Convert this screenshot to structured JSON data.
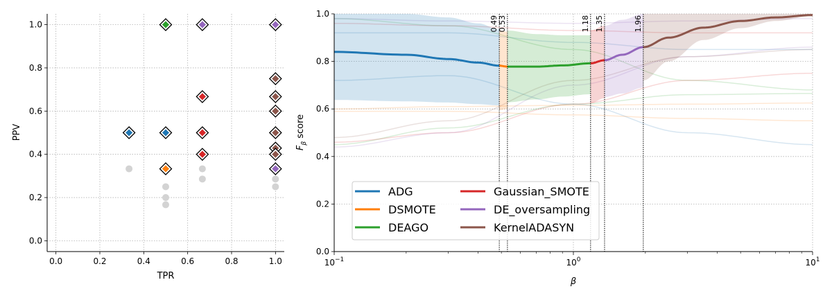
{
  "chart_data": [
    {
      "type": "scatter",
      "xlabel": "TPR",
      "ylabel": "PPV",
      "xlim": [
        -0.04,
        1.04
      ],
      "ylim": [
        -0.05,
        1.05
      ],
      "xticks": [
        "0.0",
        "0.2",
        "0.4",
        "0.6",
        "0.8",
        "1.0"
      ],
      "yticks": [
        "0.0",
        "0.2",
        "0.4",
        "0.6",
        "0.8",
        "1.0"
      ],
      "grid": true,
      "colors": {
        "blue": "#1f77b4",
        "orange": "#ff7f0e",
        "green": "#2ca02c",
        "red": "#d62728",
        "purple": "#9467bd",
        "brown": "#8c564b",
        "grey": "#d3d3d3"
      },
      "background_points": [
        {
          "x": 0.333,
          "y": 0.333
        },
        {
          "x": 0.5,
          "y": 0.25
        },
        {
          "x": 0.5,
          "y": 0.2
        },
        {
          "x": 0.5,
          "y": 0.1667
        },
        {
          "x": 0.667,
          "y": 0.333
        },
        {
          "x": 0.667,
          "y": 0.2857
        },
        {
          "x": 1.0,
          "y": 0.2857
        },
        {
          "x": 1.0,
          "y": 0.25
        },
        {
          "x": 1.0,
          "y": 0.3333
        },
        {
          "x": 1.0,
          "y": 0.4
        },
        {
          "x": 0.667,
          "y": 0.4
        }
      ],
      "highlighted_points": [
        {
          "x": 0.333,
          "y": 0.5,
          "color": "blue"
        },
        {
          "x": 0.5,
          "y": 0.5,
          "color": "blue"
        },
        {
          "x": 0.5,
          "y": 0.333,
          "color": "orange"
        },
        {
          "x": 0.5,
          "y": 1.0,
          "color": "green"
        },
        {
          "x": 0.667,
          "y": 1.0,
          "color": "purple"
        },
        {
          "x": 0.667,
          "y": 0.667,
          "color": "red"
        },
        {
          "x": 0.667,
          "y": 0.5,
          "color": "red"
        },
        {
          "x": 0.667,
          "y": 0.4,
          "color": "red"
        },
        {
          "x": 1.0,
          "y": 1.0,
          "color": "purple"
        },
        {
          "x": 1.0,
          "y": 0.75,
          "color": "brown"
        },
        {
          "x": 1.0,
          "y": 0.667,
          "color": "brown"
        },
        {
          "x": 1.0,
          "y": 0.6,
          "color": "brown"
        },
        {
          "x": 1.0,
          "y": 0.5,
          "color": "brown"
        },
        {
          "x": 1.0,
          "y": 0.4286,
          "color": "brown"
        },
        {
          "x": 1.0,
          "y": 0.4,
          "color": "brown"
        },
        {
          "x": 1.0,
          "y": 0.333,
          "color": "purple"
        }
      ]
    },
    {
      "type": "line",
      "xlabel": "β",
      "ylabel": "Fβ score",
      "xscale": "log",
      "xlim": [
        0.1,
        10
      ],
      "ylim": [
        0.0,
        1.0
      ],
      "xticks": [
        {
          "base": "10",
          "exp": "−1",
          "v": 0.1
        },
        {
          "base": "10",
          "exp": "0",
          "v": 1
        },
        {
          "base": "10",
          "exp": "1",
          "v": 10
        }
      ],
      "yticks": [
        "0.0",
        "0.2",
        "0.4",
        "0.6",
        "0.8",
        "1.0"
      ],
      "grid": true,
      "legend_position": "lower-left",
      "thresholds": [
        {
          "x": 0.49,
          "label": "0.49"
        },
        {
          "x": 0.53,
          "label": "0.53"
        },
        {
          "x": 1.18,
          "label": "1.18"
        },
        {
          "x": 1.35,
          "label": "1.35"
        },
        {
          "x": 1.96,
          "label": "1.96"
        }
      ],
      "series": [
        {
          "name": "ADG",
          "color": "#1f77b4",
          "range": [
            0.1,
            0.49
          ],
          "x": [
            0.1,
            0.2,
            0.3,
            0.4,
            0.49
          ],
          "y": [
            0.84,
            0.828,
            0.81,
            0.795,
            0.782
          ],
          "band_low": [
            0.638,
            0.632,
            0.627,
            0.62,
            0.615
          ],
          "band_high": [
            1.0,
            1.0,
            0.985,
            0.96,
            0.935
          ]
        },
        {
          "name": "DSMOTE",
          "color": "#ff7f0e",
          "range": [
            0.49,
            0.53
          ],
          "x": [
            0.49,
            0.53
          ],
          "y": [
            0.782,
            0.778
          ],
          "band_low": [
            0.595,
            0.6
          ],
          "band_high": [
            0.93,
            0.925
          ]
        },
        {
          "name": "DEAGO",
          "color": "#2ca02c",
          "range": [
            0.53,
            1.18
          ],
          "x": [
            0.53,
            0.7,
            0.9,
            1.18
          ],
          "y": [
            0.778,
            0.778,
            0.783,
            0.792
          ],
          "band_low": [
            0.628,
            0.64,
            0.652,
            0.662
          ],
          "band_high": [
            0.93,
            0.915,
            0.91,
            0.91
          ]
        },
        {
          "name": "Gaussian_SMOTE",
          "color": "#d62728",
          "range": [
            1.18,
            1.35
          ],
          "x": [
            1.18,
            1.35
          ],
          "y": [
            0.792,
            0.805
          ],
          "band_low": [
            0.625,
            0.645
          ],
          "band_high": [
            0.93,
            0.95
          ]
        },
        {
          "name": "DE_oversampling",
          "color": "#9467bd",
          "range": [
            1.35,
            1.96
          ],
          "x": [
            1.35,
            1.6,
            1.96
          ],
          "y": [
            0.805,
            0.828,
            0.86
          ],
          "band_low": [
            0.65,
            0.665,
            0.69
          ],
          "band_high": [
            0.95,
            0.975,
            1.0
          ]
        },
        {
          "name": "KernelADASYN",
          "color": "#8c564b",
          "range": [
            1.96,
            10
          ],
          "x": [
            1.96,
            2.5,
            3.5,
            5,
            7,
            10
          ],
          "y": [
            0.86,
            0.9,
            0.942,
            0.97,
            0.985,
            0.995
          ],
          "band_low": [
            0.72,
            0.8,
            0.89,
            0.94,
            0.97,
            0.99
          ],
          "band_high": [
            1.0,
            1.0,
            1.0,
            1.0,
            1.0,
            1.0
          ]
        }
      ],
      "faint_curves": [
        {
          "color": "#1f77b4",
          "x": [
            0.1,
            0.3,
            1,
            3,
            10
          ],
          "y": [
            0.72,
            0.74,
            0.62,
            0.5,
            0.45
          ]
        },
        {
          "color": "#1f77b4",
          "x": [
            0.1,
            0.3,
            1,
            3,
            10
          ],
          "y": [
            0.92,
            0.92,
            0.88,
            0.85,
            0.85
          ]
        },
        {
          "color": "#ff7f0e",
          "x": [
            0.1,
            0.3,
            1,
            3,
            10
          ],
          "y": [
            0.59,
            0.59,
            0.575,
            0.56,
            0.55
          ]
        },
        {
          "color": "#ff7f0e",
          "x": [
            0.1,
            0.3,
            1,
            3,
            10
          ],
          "y": [
            0.6,
            0.61,
            0.615,
            0.62,
            0.625
          ]
        },
        {
          "color": "#2ca02c",
          "x": [
            0.1,
            0.3,
            1,
            3,
            10
          ],
          "y": [
            0.98,
            0.95,
            0.85,
            0.72,
            0.68
          ]
        },
        {
          "color": "#2ca02c",
          "x": [
            0.1,
            0.3,
            1,
            3,
            10
          ],
          "y": [
            0.45,
            0.52,
            0.62,
            0.66,
            0.665
          ]
        },
        {
          "color": "#d62728",
          "x": [
            0.1,
            0.3,
            1,
            3,
            10
          ],
          "y": [
            0.46,
            0.5,
            0.62,
            0.72,
            0.75
          ]
        },
        {
          "color": "#d62728",
          "x": [
            0.1,
            0.3,
            1,
            3,
            10
          ],
          "y": [
            0.96,
            0.95,
            0.93,
            0.92,
            0.92
          ]
        },
        {
          "color": "#9467bd",
          "x": [
            0.1,
            0.3,
            1,
            3,
            10
          ],
          "y": [
            0.44,
            0.5,
            0.7,
            0.82,
            0.86
          ]
        },
        {
          "color": "#9467bd",
          "x": [
            0.1,
            0.3,
            1,
            3,
            10
          ],
          "y": [
            0.98,
            0.97,
            0.96,
            0.97,
            0.98
          ]
        },
        {
          "color": "#8c564b",
          "x": [
            0.1,
            0.3,
            1,
            3,
            10
          ],
          "y": [
            0.48,
            0.55,
            0.72,
            0.82,
            0.85
          ]
        }
      ]
    }
  ]
}
